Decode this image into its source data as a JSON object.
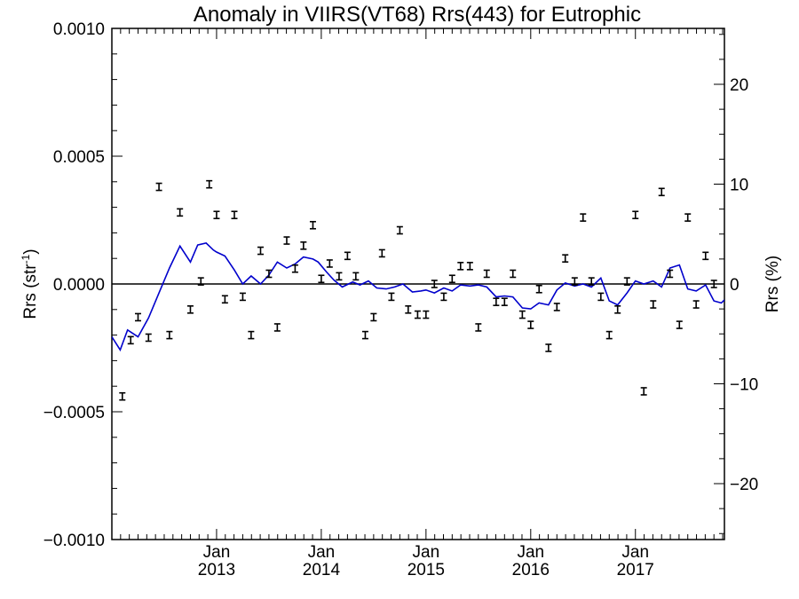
{
  "chart_data": {
    "type": "line",
    "title": "Anomaly in VIIRS(VT68) Rrs(443) for Eutrophic",
    "ylabel_left": {
      "prefix": "Rrs (str",
      "sup": "-1",
      "suffix": ")"
    },
    "ylabel_right": "Rrs (%)",
    "xlim": [
      2012.0,
      2017.85
    ],
    "ylim": [
      -0.001,
      0.001
    ],
    "ylim_right": [
      -25.6,
      25.6
    ],
    "grid": false,
    "y_ticks": [
      {
        "value": 0.001,
        "label": "0.0010"
      },
      {
        "value": 0.0005,
        "label": "0.0005"
      },
      {
        "value": 0.0,
        "label": "0.0000"
      },
      {
        "value": -0.0005,
        "label": "−0.0005"
      },
      {
        "value": -0.001,
        "label": "−0.0010"
      }
    ],
    "y_right_ticks": [
      {
        "value": 20,
        "label": "20"
      },
      {
        "value": 10,
        "label": "10"
      },
      {
        "value": 0,
        "label": "0"
      },
      {
        "value": -10,
        "label": "−10"
      },
      {
        "value": -20,
        "label": "−20"
      }
    ],
    "x_ticks": [
      {
        "value": 2013.0,
        "month": "Jan",
        "year": "2013"
      },
      {
        "value": 2014.0,
        "month": "Jan",
        "year": "2014"
      },
      {
        "value": 2015.0,
        "month": "Jan",
        "year": "2015"
      },
      {
        "value": 2016.0,
        "month": "Jan",
        "year": "2016"
      },
      {
        "value": 2017.0,
        "month": "Jan",
        "year": "2017"
      }
    ],
    "colors": {
      "line": "#0000cc",
      "points": "#000000",
      "zero_line": "#000000"
    },
    "series": [
      {
        "type": "line",
        "axis": "right",
        "x": [
          2012.0,
          2012.08,
          2012.15,
          2012.25,
          2012.35,
          2012.45,
          2012.55,
          2012.65,
          2012.75,
          2012.82,
          2012.9,
          2012.97,
          2013.0,
          2013.08,
          2013.17,
          2013.25,
          2013.33,
          2013.42,
          2013.5,
          2013.58,
          2013.67,
          2013.75,
          2013.83,
          2013.92,
          2013.97,
          2014.05,
          2014.12,
          2014.2,
          2014.3,
          2014.37,
          2014.45,
          2014.53,
          2014.62,
          2014.7,
          2014.78,
          2014.87,
          2014.95,
          2015.0,
          2015.08,
          2015.17,
          2015.25,
          2015.33,
          2015.42,
          2015.5,
          2015.58,
          2015.67,
          2015.75,
          2015.83,
          2015.92,
          2016.0,
          2016.08,
          2016.17,
          2016.25,
          2016.33,
          2016.42,
          2016.5,
          2016.58,
          2016.67,
          2016.75,
          2016.83,
          2016.92,
          2017.0,
          2017.08,
          2017.17,
          2017.25,
          2017.33,
          2017.42,
          2017.5,
          2017.58,
          2017.67,
          2017.75,
          2017.82,
          2017.85
        ],
        "y": [
          -5.3,
          -6.6,
          -4.6,
          -5.3,
          -3.4,
          -0.9,
          1.6,
          3.8,
          2.2,
          3.9,
          4.1,
          3.4,
          3.2,
          2.8,
          1.4,
          0.0,
          0.8,
          0.0,
          0.9,
          2.2,
          1.6,
          2.0,
          2.7,
          2.5,
          2.2,
          1.2,
          0.4,
          -0.3,
          0.2,
          -0.1,
          0.3,
          -0.4,
          -0.5,
          -0.3,
          0.0,
          -0.8,
          -0.7,
          -0.6,
          -0.9,
          -0.4,
          -0.7,
          -0.1,
          -0.2,
          -0.1,
          -0.3,
          -1.3,
          -1.2,
          -1.3,
          -2.4,
          -2.5,
          -1.9,
          -2.1,
          -0.6,
          0.1,
          -0.2,
          0.0,
          -0.3,
          0.6,
          -1.7,
          -2.1,
          -0.9,
          0.3,
          0.0,
          0.3,
          -0.3,
          1.6,
          1.9,
          -0.5,
          -0.7,
          -0.1,
          -1.7,
          -1.9,
          -1.6
        ]
      },
      {
        "type": "scatter",
        "axis": "left",
        "x": [
          2012.1,
          2012.18,
          2012.25,
          2012.35,
          2012.45,
          2012.55,
          2012.65,
          2012.75,
          2012.85,
          2012.93,
          2013.0,
          2013.08,
          2013.17,
          2013.25,
          2013.33,
          2013.42,
          2013.5,
          2013.58,
          2013.67,
          2013.75,
          2013.83,
          2013.92,
          2014.0,
          2014.08,
          2014.17,
          2014.25,
          2014.33,
          2014.42,
          2014.5,
          2014.58,
          2014.67,
          2014.75,
          2014.83,
          2014.92,
          2015.0,
          2015.08,
          2015.17,
          2015.25,
          2015.33,
          2015.42,
          2015.5,
          2015.58,
          2015.67,
          2015.75,
          2015.83,
          2015.92,
          2016.0,
          2016.08,
          2016.17,
          2016.25,
          2016.33,
          2016.42,
          2016.5,
          2016.58,
          2016.67,
          2016.75,
          2016.83,
          2016.92,
          2017.0,
          2017.08,
          2017.17,
          2017.25,
          2017.33,
          2017.42,
          2017.5,
          2017.58,
          2017.67,
          2017.75
        ],
        "y": [
          -0.00044,
          -0.00022,
          -0.00013,
          -0.00021,
          0.00038,
          -0.0002,
          0.00028,
          -0.0001,
          1e-05,
          0.00039,
          0.00027,
          -6e-05,
          0.00027,
          -5e-05,
          -0.0002,
          0.00013,
          4e-05,
          -0.00017,
          0.00017,
          6e-05,
          0.00015,
          0.00023,
          2e-05,
          8e-05,
          3e-05,
          0.00011,
          3e-05,
          -0.0002,
          -0.00013,
          0.00012,
          -5e-05,
          0.00021,
          -0.0001,
          -0.00012,
          -0.00012,
          0.0,
          -5e-05,
          2e-05,
          7e-05,
          7e-05,
          -0.00017,
          4e-05,
          -7e-05,
          -7e-05,
          4e-05,
          -0.00012,
          -0.00016,
          -2e-05,
          -0.00025,
          -9e-05,
          0.0001,
          1e-05,
          0.00026,
          1e-05,
          -5e-05,
          -0.0002,
          -0.0001,
          1e-05,
          0.00027,
          -0.00042,
          -8e-05,
          0.00036,
          4e-05,
          -0.00016,
          0.00026,
          -8e-05,
          0.00011,
          0.0
        ]
      }
    ]
  }
}
